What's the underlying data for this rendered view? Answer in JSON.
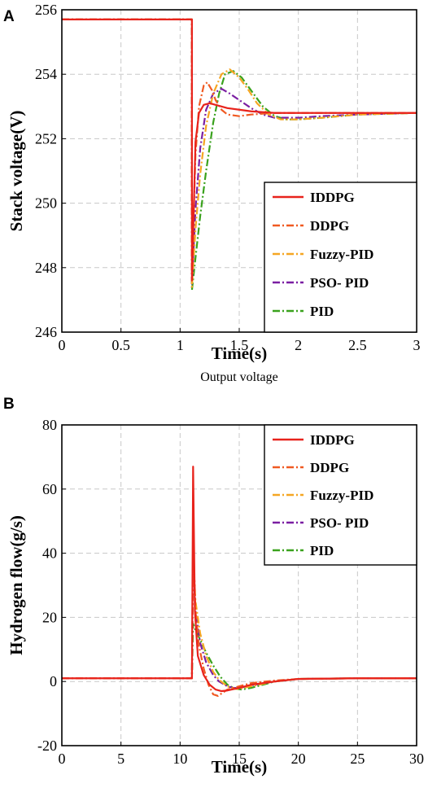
{
  "chart_data": [
    {
      "type": "line",
      "panel_label": "A",
      "title": "",
      "caption": "Output voltage",
      "xlabel": "Time(s)",
      "ylabel": "Stack voltage(V)",
      "xlim": [
        0,
        3
      ],
      "ylim": [
        246,
        256
      ],
      "xticks": [
        "0",
        "0.5",
        "1",
        "1.5",
        "2",
        "2.5",
        "3"
      ],
      "yticks": [
        "246",
        "248",
        "250",
        "252",
        "254",
        "256"
      ],
      "grid": true,
      "legend_position": "lower-right",
      "series": [
        {
          "name": "IDDPG",
          "color": "#e8231c",
          "dash": "solid",
          "x": [
            0,
            1.1,
            1.1,
            1.13,
            1.16,
            1.2,
            1.25,
            1.3,
            1.4,
            1.5,
            1.6,
            1.8,
            2.0,
            2.5,
            3.0
          ],
          "y": [
            255.7,
            255.7,
            247.6,
            251.9,
            252.8,
            253.05,
            253.1,
            253.05,
            252.95,
            252.9,
            252.85,
            252.8,
            252.8,
            252.8,
            252.8
          ]
        },
        {
          "name": "DDPG",
          "color": "#f05a22",
          "dash": "dashdot",
          "x": [
            0,
            1.1,
            1.1,
            1.13,
            1.16,
            1.2,
            1.23,
            1.27,
            1.3,
            1.35,
            1.4,
            1.5,
            1.6,
            1.8,
            2.0,
            2.5,
            3.0
          ],
          "y": [
            255.7,
            255.7,
            247.8,
            251.5,
            253.0,
            253.65,
            253.75,
            253.5,
            253.2,
            252.9,
            252.75,
            252.7,
            252.75,
            252.8,
            252.8,
            252.8,
            252.8
          ]
        },
        {
          "name": "Fuzzy-PID",
          "color": "#f5a623",
          "dash": "dashdot",
          "x": [
            0,
            1.1,
            1.1,
            1.13,
            1.17,
            1.22,
            1.28,
            1.35,
            1.42,
            1.5,
            1.58,
            1.65,
            1.75,
            1.85,
            2.0,
            2.2,
            2.5,
            3.0
          ],
          "y": [
            255.7,
            255.7,
            247.4,
            249.2,
            250.9,
            252.4,
            253.4,
            254.0,
            254.15,
            253.9,
            253.5,
            253.1,
            252.75,
            252.6,
            252.6,
            252.65,
            252.75,
            252.8
          ]
        },
        {
          "name": "PSO- PID",
          "color": "#7b1fa2",
          "dash": "dashdot",
          "x": [
            0,
            1.1,
            1.1,
            1.13,
            1.17,
            1.22,
            1.28,
            1.35,
            1.42,
            1.5,
            1.6,
            1.7,
            1.8,
            2.0,
            2.2,
            2.5,
            3.0
          ],
          "y": [
            255.7,
            255.7,
            247.5,
            249.8,
            251.7,
            252.9,
            253.4,
            253.55,
            253.4,
            253.2,
            252.95,
            252.75,
            252.65,
            252.65,
            252.7,
            252.75,
            252.8
          ]
        },
        {
          "name": "PID",
          "color": "#3aa21d",
          "dash": "dashdot",
          "x": [
            0,
            1.1,
            1.1,
            1.13,
            1.17,
            1.22,
            1.28,
            1.33,
            1.38,
            1.45,
            1.52,
            1.6,
            1.7,
            1.8,
            1.9,
            2.0,
            2.2,
            2.5,
            3.0
          ],
          "y": [
            255.7,
            255.7,
            247.3,
            248.3,
            249.6,
            251.0,
            252.5,
            253.4,
            254.0,
            254.1,
            253.9,
            253.5,
            253.0,
            252.7,
            252.6,
            252.6,
            252.65,
            252.75,
            252.8
          ]
        }
      ]
    },
    {
      "type": "line",
      "panel_label": "B",
      "title": "",
      "xlabel": "Time(s)",
      "ylabel": "Hydrogen flow(g/s)",
      "xlim": [
        0,
        30
      ],
      "ylim": [
        -20,
        80
      ],
      "xticks": [
        "0",
        "5",
        "10",
        "15",
        "20",
        "25",
        "30"
      ],
      "yticks": [
        "-20",
        "0",
        "20",
        "40",
        "60",
        "80"
      ],
      "grid": true,
      "legend_position": "upper-right",
      "series": [
        {
          "name": "IDDPG",
          "color": "#e8231c",
          "dash": "solid",
          "x": [
            0,
            11,
            11,
            11.1,
            11.25,
            11.5,
            12,
            12.5,
            13,
            13.5,
            14,
            15,
            16,
            18,
            20,
            25,
            30
          ],
          "y": [
            1,
            1,
            1,
            67,
            22,
            8,
            2,
            -1,
            -2.5,
            -3,
            -2.8,
            -2,
            -1,
            0,
            0.8,
            1,
            1
          ]
        },
        {
          "name": "DDPG",
          "color": "#f05a22",
          "dash": "dashdot",
          "x": [
            0,
            11,
            11,
            11.1,
            11.3,
            11.6,
            12,
            12.4,
            12.8,
            13.2,
            13.6,
            14,
            15,
            16,
            18,
            20,
            25,
            30
          ],
          "y": [
            1,
            1,
            1,
            45,
            22,
            11,
            4,
            -1,
            -4,
            -4.5,
            -3.5,
            -2.5,
            -1.5,
            -0.5,
            0.3,
            0.8,
            1,
            1
          ]
        },
        {
          "name": "Fuzzy-PID",
          "color": "#f5a623",
          "dash": "dashdot",
          "x": [
            0,
            11,
            11,
            11.1,
            11.3,
            11.7,
            12.2,
            12.8,
            13.3,
            14,
            14.5,
            15,
            16,
            18,
            20,
            25,
            30
          ],
          "y": [
            1,
            1,
            1,
            40,
            25,
            15,
            8,
            3,
            0.5,
            -1.5,
            -2.2,
            -2.3,
            -1.5,
            0,
            0.8,
            1,
            1
          ]
        },
        {
          "name": "PSO- PID",
          "color": "#7b1fa2",
          "dash": "dashdot",
          "x": [
            0,
            11,
            11,
            11.1,
            11.3,
            11.7,
            12.2,
            12.8,
            13.3,
            14,
            14.5,
            15,
            16,
            18,
            20,
            25,
            30
          ],
          "y": [
            1,
            1,
            1,
            38,
            22,
            12,
            6,
            2,
            0,
            -1.5,
            -2,
            -2,
            -1.2,
            0,
            0.8,
            1,
            1
          ]
        },
        {
          "name": "PID",
          "color": "#3aa21d",
          "dash": "dashdot",
          "x": [
            0,
            11,
            11,
            11.1,
            11.3,
            11.7,
            12.2,
            12.8,
            13.4,
            14,
            14.6,
            15.2,
            16,
            17,
            18,
            20,
            25,
            30
          ],
          "y": [
            1,
            1,
            1,
            18,
            16,
            13,
            9,
            5,
            1.5,
            -1,
            -2.2,
            -2.5,
            -2,
            -1,
            0,
            0.8,
            1,
            1
          ]
        }
      ]
    }
  ]
}
